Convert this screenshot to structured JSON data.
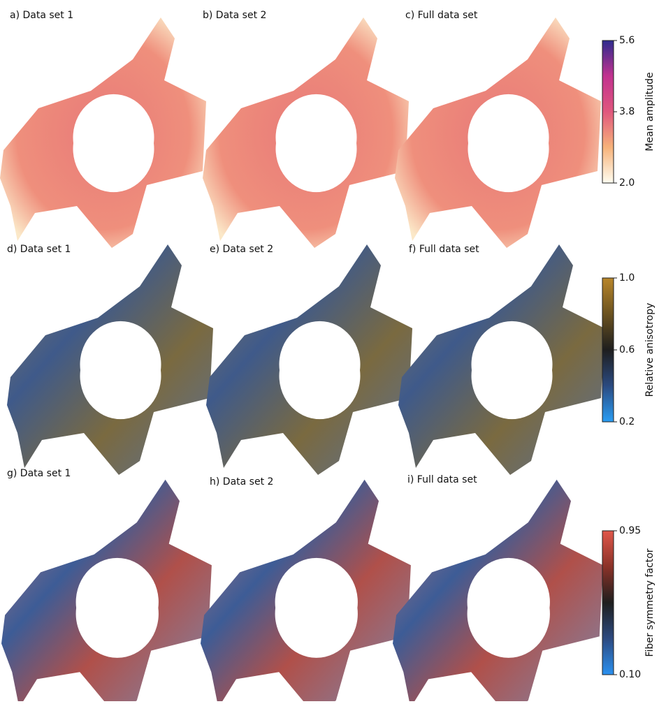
{
  "panels": [
    {
      "label": "a) Data set 1"
    },
    {
      "label": "b) Data set 2"
    },
    {
      "label": "c) Full data set"
    },
    {
      "label": "d) Data set 1"
    },
    {
      "label": "e) Data set 2"
    },
    {
      "label": "f) Full data set"
    },
    {
      "label": "g) Data set 1"
    },
    {
      "label": "h) Data set 2"
    },
    {
      "label": "i) Full data set"
    }
  ],
  "colorbars": [
    {
      "label": "Mean amplitude",
      "lim": [
        2.0,
        5.6
      ],
      "ticks": [
        {
          "value": 2.0,
          "label": "2.0"
        },
        3.8,
        5.6
      ],
      "colors": [
        "#fffdf0",
        "#f6b27a",
        "#e0577d",
        "#c2328f",
        "#2e2b8e"
      ]
    },
    {
      "label": "Relative anisotropy",
      "lim": [
        0.2,
        1.0
      ],
      "ticks": [
        0.2,
        0.6,
        {
          "value": 1.0,
          "label": "1.0"
        }
      ],
      "colors": [
        "#2a9df4",
        "#2b4a80",
        "#1e1e1e",
        "#6b5220",
        "#b8862a"
      ]
    },
    {
      "label": "Fiber symmetry factor",
      "lim": [
        0.1,
        0.95
      ],
      "ticks": [
        {
          "value": 0.1,
          "label": "0.10"
        },
        0.95
      ],
      "colors": [
        "#2a90f0",
        "#2d4a80",
        "#1e1e1e",
        "#8a3228",
        "#e0574a"
      ]
    }
  ]
}
